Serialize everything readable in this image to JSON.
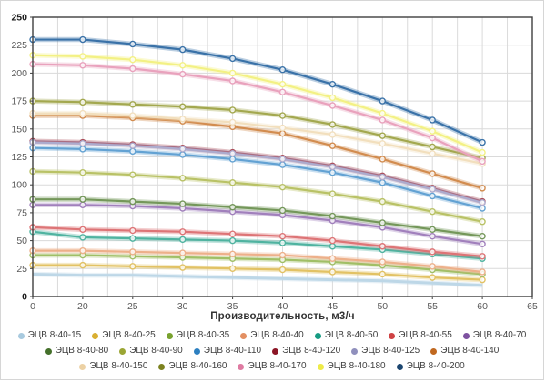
{
  "page": {
    "background": "#ffffff",
    "frame_border": "#d6d6d6"
  },
  "chart_data": {
    "type": "line",
    "title": "",
    "xlabel": "Производительность, м3/ч",
    "ylabel": "",
    "x_tick_labels": [
      "0",
      "20",
      "25",
      "30",
      "35",
      "40",
      "45",
      "50",
      "55",
      "60",
      "65"
    ],
    "x_data_ticks": [
      0,
      20,
      25,
      30,
      35,
      40,
      45,
      50,
      55,
      60
    ],
    "y_ticks": [
      "0",
      "25",
      "50",
      "75",
      "100",
      "125",
      "150",
      "175",
      "200",
      "225",
      "250"
    ],
    "ylim": [
      0,
      250
    ],
    "grid": true,
    "minor_vertical_grid": true,
    "legend_position": "bottom",
    "axis_color": "#3f3f3f",
    "grid_color": "#dadada",
    "tick_label_color": "#595959",
    "series": [
      {
        "name": "ЭЦВ 8-40-15",
        "dot_color": "#a8cadf",
        "line_color": "#bdd7e7",
        "markers": false,
        "values": [
          20,
          19,
          19,
          18,
          17,
          16,
          15,
          14,
          12,
          10
        ]
      },
      {
        "name": "ЭЦВ 8-40-25",
        "dot_color": "#d9af32",
        "line_color": "#e2c264",
        "markers": true,
        "values": [
          28,
          28,
          27,
          26,
          25,
          24,
          22,
          20,
          17,
          15
        ]
      },
      {
        "name": "ЭЦВ 8-40-35",
        "dot_color": "#79a22f",
        "line_color": "#a0bf66",
        "markers": true,
        "values": [
          37,
          37,
          36,
          35,
          34,
          33,
          31,
          28,
          24,
          20
        ]
      },
      {
        "name": "ЭЦВ 8-40-40",
        "dot_color": "#e38f62",
        "line_color": "#edb08a",
        "markers": true,
        "values": [
          41,
          41,
          40,
          39,
          38,
          37,
          34,
          31,
          27,
          22
        ]
      },
      {
        "name": "ЭЦВ 8-40-50",
        "dot_color": "#169b82",
        "line_color": "#4fb3a0",
        "markers": true,
        "values": [
          58,
          53,
          52,
          51,
          50,
          48,
          45,
          42,
          38,
          34
        ]
      },
      {
        "name": "ЭЦВ 8-40-55",
        "dot_color": "#cf4244",
        "line_color": "#dd7476",
        "markers": true,
        "values": [
          62,
          60,
          59,
          58,
          56,
          54,
          50,
          45,
          40,
          36
        ]
      },
      {
        "name": "ЭЦВ 8-40-70",
        "dot_color": "#7e52a0",
        "line_color": "#a180bc",
        "markers": true,
        "values": [
          82,
          82,
          81,
          79,
          76,
          73,
          68,
          62,
          54,
          47
        ]
      },
      {
        "name": "ЭЦВ 8-40-80",
        "dot_color": "#44702a",
        "line_color": "#74975a",
        "markers": true,
        "values": [
          87,
          87,
          85,
          83,
          80,
          77,
          72,
          66,
          60,
          54
        ]
      },
      {
        "name": "ЭЦВ 8-40-90",
        "dot_color": "#9ba634",
        "line_color": "#b9c266",
        "markers": true,
        "values": [
          112,
          111,
          109,
          106,
          102,
          98,
          92,
          85,
          76,
          67
        ]
      },
      {
        "name": "ЭЦВ 8-40-110",
        "dot_color": "#2c7fc0",
        "line_color": "#63a2d3",
        "markers": true,
        "values": [
          133,
          132,
          130,
          127,
          123,
          118,
          111,
          102,
          90,
          79
        ]
      },
      {
        "name": "ЭЦВ 8-40-120",
        "dot_color": "#8c1626",
        "line_color": "#ab4e5a",
        "markers": true,
        "values": [
          139,
          138,
          136,
          133,
          129,
          124,
          117,
          108,
          97,
          85
        ]
      },
      {
        "name": "ЭЦВ 8-40-125",
        "dot_color": "#9090bd",
        "line_color": "#acabce",
        "markers": true,
        "values": [
          138,
          137,
          135,
          132,
          128,
          123,
          116,
          107,
          96,
          84
        ]
      },
      {
        "name": "ЭЦВ 8-40-140",
        "dot_color": "#c06820",
        "line_color": "#d28c4f",
        "markers": true,
        "values": [
          162,
          162,
          160,
          157,
          152,
          146,
          135,
          123,
          110,
          97
        ]
      },
      {
        "name": "ЭЦВ 8-40-150",
        "dot_color": "#ecd1a4",
        "line_color": "#f2dfbd",
        "markers": true,
        "values": [
          164,
          164,
          162,
          159,
          156,
          151,
          145,
          137,
          128,
          119
        ]
      },
      {
        "name": "ЭЦВ 8-40-160",
        "dot_color": "#7c821f",
        "line_color": "#a3a84f",
        "markers": true,
        "values": [
          175,
          174,
          172,
          170,
          167,
          162,
          154,
          144,
          134,
          124
        ]
      },
      {
        "name": "ЭЦВ 8-40-170",
        "dot_color": "#df7ba2",
        "line_color": "#e9a2bd",
        "markers": true,
        "values": [
          208,
          207,
          204,
          199,
          193,
          183,
          171,
          158,
          142,
          121
        ]
      },
      {
        "name": "ЭЦВ 8-40-180",
        "dot_color": "#eeeb49",
        "line_color": "#f3f184",
        "markers": true,
        "values": [
          216,
          215,
          212,
          207,
          200,
          190,
          178,
          164,
          148,
          129
        ]
      },
      {
        "name": "ЭЦВ 8-40-200",
        "dot_color": "#1c4670",
        "line_color": "#3a72a8",
        "markers": true,
        "values": [
          230,
          230,
          226,
          221,
          213,
          203,
          190,
          175,
          158,
          138
        ]
      }
    ]
  }
}
